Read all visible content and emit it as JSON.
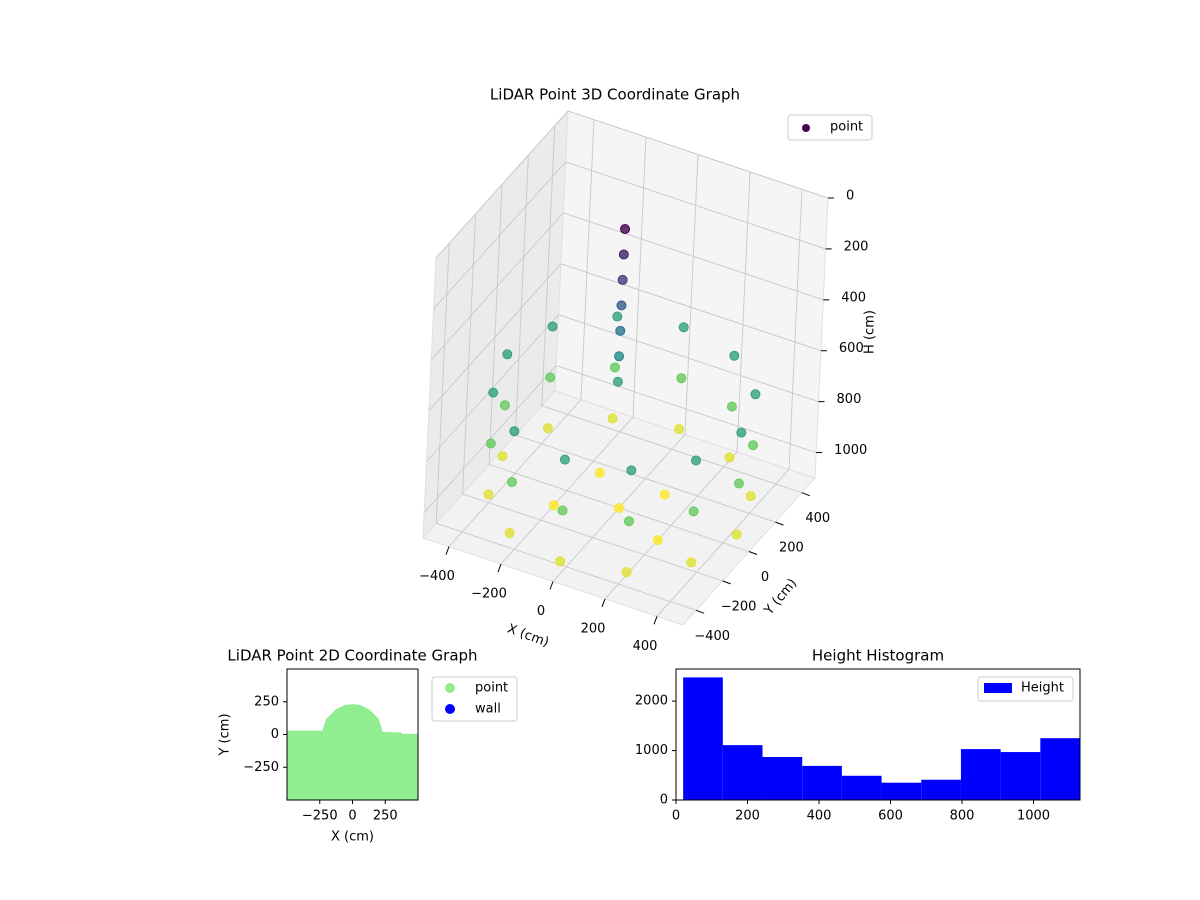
{
  "chart_data": [
    {
      "type": "scatter3d",
      "title": "LiDAR Point 3D Coordinate Graph",
      "xlabel": "X (cm)",
      "ylabel": "Y (cm)",
      "zlabel": "H (cm)",
      "xlim": [
        -500,
        500
      ],
      "ylim": [
        -500,
        500
      ],
      "zlim": [
        1100,
        0
      ],
      "xticks": [
        {
          "value": -400,
          "label": "−400"
        },
        {
          "value": -200,
          "label": "−200"
        },
        0,
        200,
        400
      ],
      "yticks": [
        {
          "value": -400,
          "label": "−400"
        },
        {
          "value": -200,
          "label": "−200"
        },
        0,
        200,
        400
      ],
      "zticks": [
        0,
        200,
        400,
        600,
        800,
        1000
      ],
      "grid": true,
      "legend": "upper right",
      "series": [
        {
          "name": "point",
          "colormap": "viridis",
          "x": [
            450,
            450,
            450,
            390,
            390,
            390,
            225,
            225,
            225,
            0,
            0,
            0,
            -225,
            -225,
            -225,
            -390,
            -390,
            -390,
            -450,
            -450,
            -450,
            -390,
            -390,
            -390,
            -225,
            -225,
            -225,
            0,
            0,
            0,
            225,
            225,
            225,
            390,
            390,
            390,
            -50,
            -50,
            -50,
            -50,
            -50,
            -50,
            -50,
            0,
            -200,
            200,
            100,
            -150
          ],
          "y": [
            0,
            0,
            0,
            225,
            225,
            225,
            390,
            390,
            390,
            450,
            450,
            450,
            390,
            390,
            390,
            225,
            225,
            225,
            0,
            0,
            0,
            -225,
            -225,
            -225,
            -390,
            -390,
            -390,
            -450,
            -450,
            -450,
            -390,
            -390,
            -390,
            -225,
            -225,
            -225,
            50,
            50,
            50,
            50,
            50,
            50,
            50,
            0,
            -100,
            -100,
            150,
            150
          ],
          "z": [
            650,
            850,
            1050,
            650,
            850,
            1050,
            650,
            850,
            1050,
            650,
            850,
            1050,
            650,
            850,
            1050,
            650,
            850,
            1050,
            650,
            850,
            1050,
            650,
            850,
            1050,
            650,
            850,
            1050,
            650,
            850,
            1050,
            650,
            850,
            1050,
            650,
            850,
            1050,
            50,
            150,
            250,
            350,
            450,
            550,
            650,
            1100,
            1100,
            1100,
            1100,
            1100
          ]
        }
      ]
    },
    {
      "type": "scatter",
      "title": "LiDAR Point 2D Coordinate Graph",
      "xlabel": "X (cm)",
      "ylabel": "Y (cm)",
      "xlim": [
        -500,
        500
      ],
      "ylim": [
        -500,
        500
      ],
      "xticks": [
        {
          "value": -250,
          "label": "−250"
        },
        0,
        250
      ],
      "yticks": [
        {
          "value": -250,
          "label": "−250"
        },
        0,
        250
      ],
      "legend": "outside right",
      "series": [
        {
          "name": "point",
          "color": "#90ee90",
          "x": [
            -500,
            -500,
            -230,
            -200,
            -130,
            -60,
            0,
            60,
            130,
            200,
            230,
            370,
            380,
            500,
            500
          ],
          "y": [
            -500,
            30,
            30,
            120,
            190,
            225,
            232,
            225,
            190,
            120,
            20,
            15,
            5,
            5,
            -500
          ]
        },
        {
          "name": "wall",
          "color": "#0000ff",
          "x": [],
          "y": []
        }
      ]
    },
    {
      "type": "histogram",
      "title": "Height Histogram",
      "xlim": [
        0,
        1130
      ],
      "ylim": [
        0,
        2650
      ],
      "xticks": [
        0,
        200,
        400,
        600,
        800,
        1000
      ],
      "yticks": [
        0,
        1000,
        2000
      ],
      "legend": "upper right",
      "series": [
        {
          "name": "Height",
          "color": "#0000ff",
          "bins": [
            20,
            131,
            242,
            353,
            464,
            575,
            686,
            797,
            908,
            1019,
            1130
          ],
          "values": [
            2480,
            1110,
            870,
            690,
            490,
            350,
            410,
            1030,
            970,
            1250
          ]
        }
      ]
    }
  ]
}
